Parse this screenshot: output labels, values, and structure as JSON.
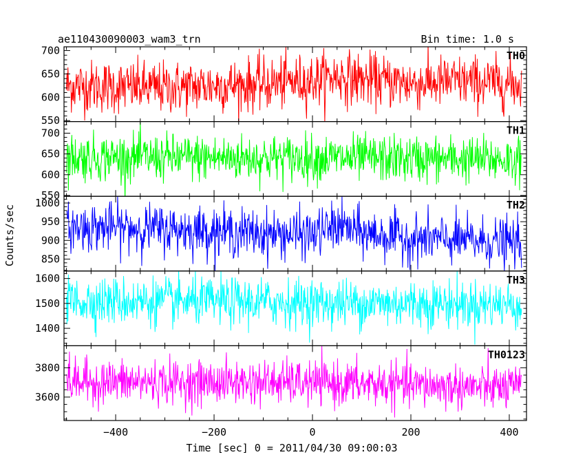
{
  "header": {
    "title": "ae110430090003_wam3_trn",
    "bin_time": "Bin time: 1.0 s"
  },
  "chart_data": {
    "type": "line",
    "xlabel": "Time [sec] 0 = 2011/04/30 09:00:03",
    "ylabel": "Counts/sec",
    "xlim": [
      -505,
      435
    ],
    "x_ticks": [
      -400,
      -200,
      0,
      200,
      400
    ],
    "x_minor_step": 50,
    "data_x_range": [
      -500,
      425
    ],
    "bin_time_s": 1.0,
    "grid": false,
    "panels": [
      {
        "name": "TH0",
        "color": "#ff0000",
        "ylim": [
          548,
          708
        ],
        "y_ticks": [
          550,
          600,
          650,
          700
        ],
        "y_minor_step": 10,
        "anchors": [
          [
            -500,
            625
          ],
          [
            -400,
            622
          ],
          [
            -300,
            620
          ],
          [
            -200,
            625
          ],
          [
            -100,
            628
          ],
          [
            0,
            636
          ],
          [
            50,
            645
          ],
          [
            100,
            638
          ],
          [
            200,
            630
          ],
          [
            300,
            634
          ],
          [
            425,
            628
          ]
        ],
        "noise_sigma": 28
      },
      {
        "name": "TH1",
        "color": "#00ff00",
        "ylim": [
          548,
          728
        ],
        "y_ticks": [
          550,
          600,
          650,
          700
        ],
        "y_minor_step": 10,
        "anchors": [
          [
            -500,
            642
          ],
          [
            -300,
            641
          ],
          [
            -100,
            640
          ],
          [
            0,
            640
          ],
          [
            200,
            638
          ],
          [
            425,
            636
          ]
        ],
        "noise_sigma": 28
      },
      {
        "name": "TH2",
        "color": "#0000ff",
        "ylim": [
          818,
          1018
        ],
        "y_ticks": [
          850,
          900,
          950,
          1000
        ],
        "y_minor_step": 10,
        "anchors": [
          [
            -500,
            935
          ],
          [
            -400,
            935
          ],
          [
            -300,
            930
          ],
          [
            -200,
            925
          ],
          [
            -100,
            918
          ],
          [
            0,
            915
          ],
          [
            50,
            940
          ],
          [
            100,
            920
          ],
          [
            200,
            905
          ],
          [
            300,
            900
          ],
          [
            425,
            893
          ]
        ],
        "noise_sigma": 32
      },
      {
        "name": "TH3",
        "color": "#00ffff",
        "ylim": [
          1330,
          1630
        ],
        "y_ticks": [
          1400,
          1500,
          1600
        ],
        "y_minor_step": 20,
        "anchors": [
          [
            -500,
            1510
          ],
          [
            -300,
            1508
          ],
          [
            -100,
            1505
          ],
          [
            0,
            1502
          ],
          [
            200,
            1500
          ],
          [
            425,
            1495
          ]
        ],
        "noise_sigma": 48
      },
      {
        "name": "TH0123",
        "color": "#ff00ff",
        "ylim": [
          3440,
          3950
        ],
        "y_ticks": [
          3600,
          3800
        ],
        "y_minor_step": 50,
        "anchors": [
          [
            -500,
            3705
          ],
          [
            -300,
            3700
          ],
          [
            -100,
            3700
          ],
          [
            0,
            3695
          ],
          [
            100,
            3690
          ],
          [
            200,
            3680
          ],
          [
            300,
            3670
          ],
          [
            425,
            3660
          ]
        ],
        "noise_sigma": 75
      }
    ]
  }
}
